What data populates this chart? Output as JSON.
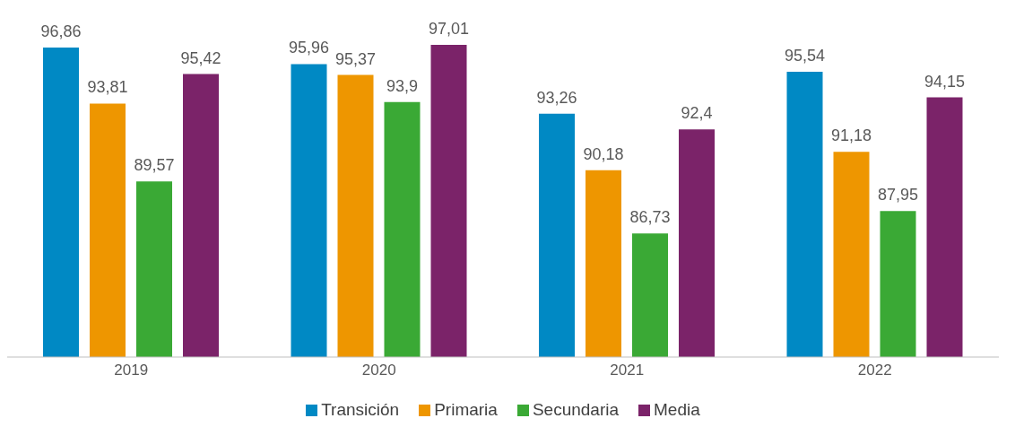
{
  "chart_data": {
    "type": "bar",
    "categories": [
      "2019",
      "2020",
      "2021",
      "2022"
    ],
    "ylim": [
      80,
      97.01
    ],
    "legend": "bottom",
    "series": [
      {
        "name": "Transición",
        "color": "#0089c4",
        "values": [
          96.86,
          95.96,
          93.26,
          95.54
        ],
        "value_labels": [
          "96,86",
          "95,96",
          "93,26",
          "95,54"
        ]
      },
      {
        "name": "Primaria",
        "color": "#ee9600",
        "values": [
          93.81,
          95.37,
          90.18,
          91.18
        ],
        "value_labels": [
          "93,81",
          "95,37",
          "90,18",
          "91,18"
        ]
      },
      {
        "name": "Secundaria",
        "color": "#3aa935",
        "values": [
          89.57,
          93.9,
          86.73,
          87.95
        ],
        "value_labels": [
          "89,57",
          "93,9",
          "86,73",
          "87,95"
        ]
      },
      {
        "name": "Media",
        "color": "#7b2369",
        "values": [
          95.42,
          97.01,
          92.4,
          94.15
        ],
        "value_labels": [
          "95,42",
          "97,01",
          "92,4",
          "94,15"
        ]
      }
    ]
  }
}
